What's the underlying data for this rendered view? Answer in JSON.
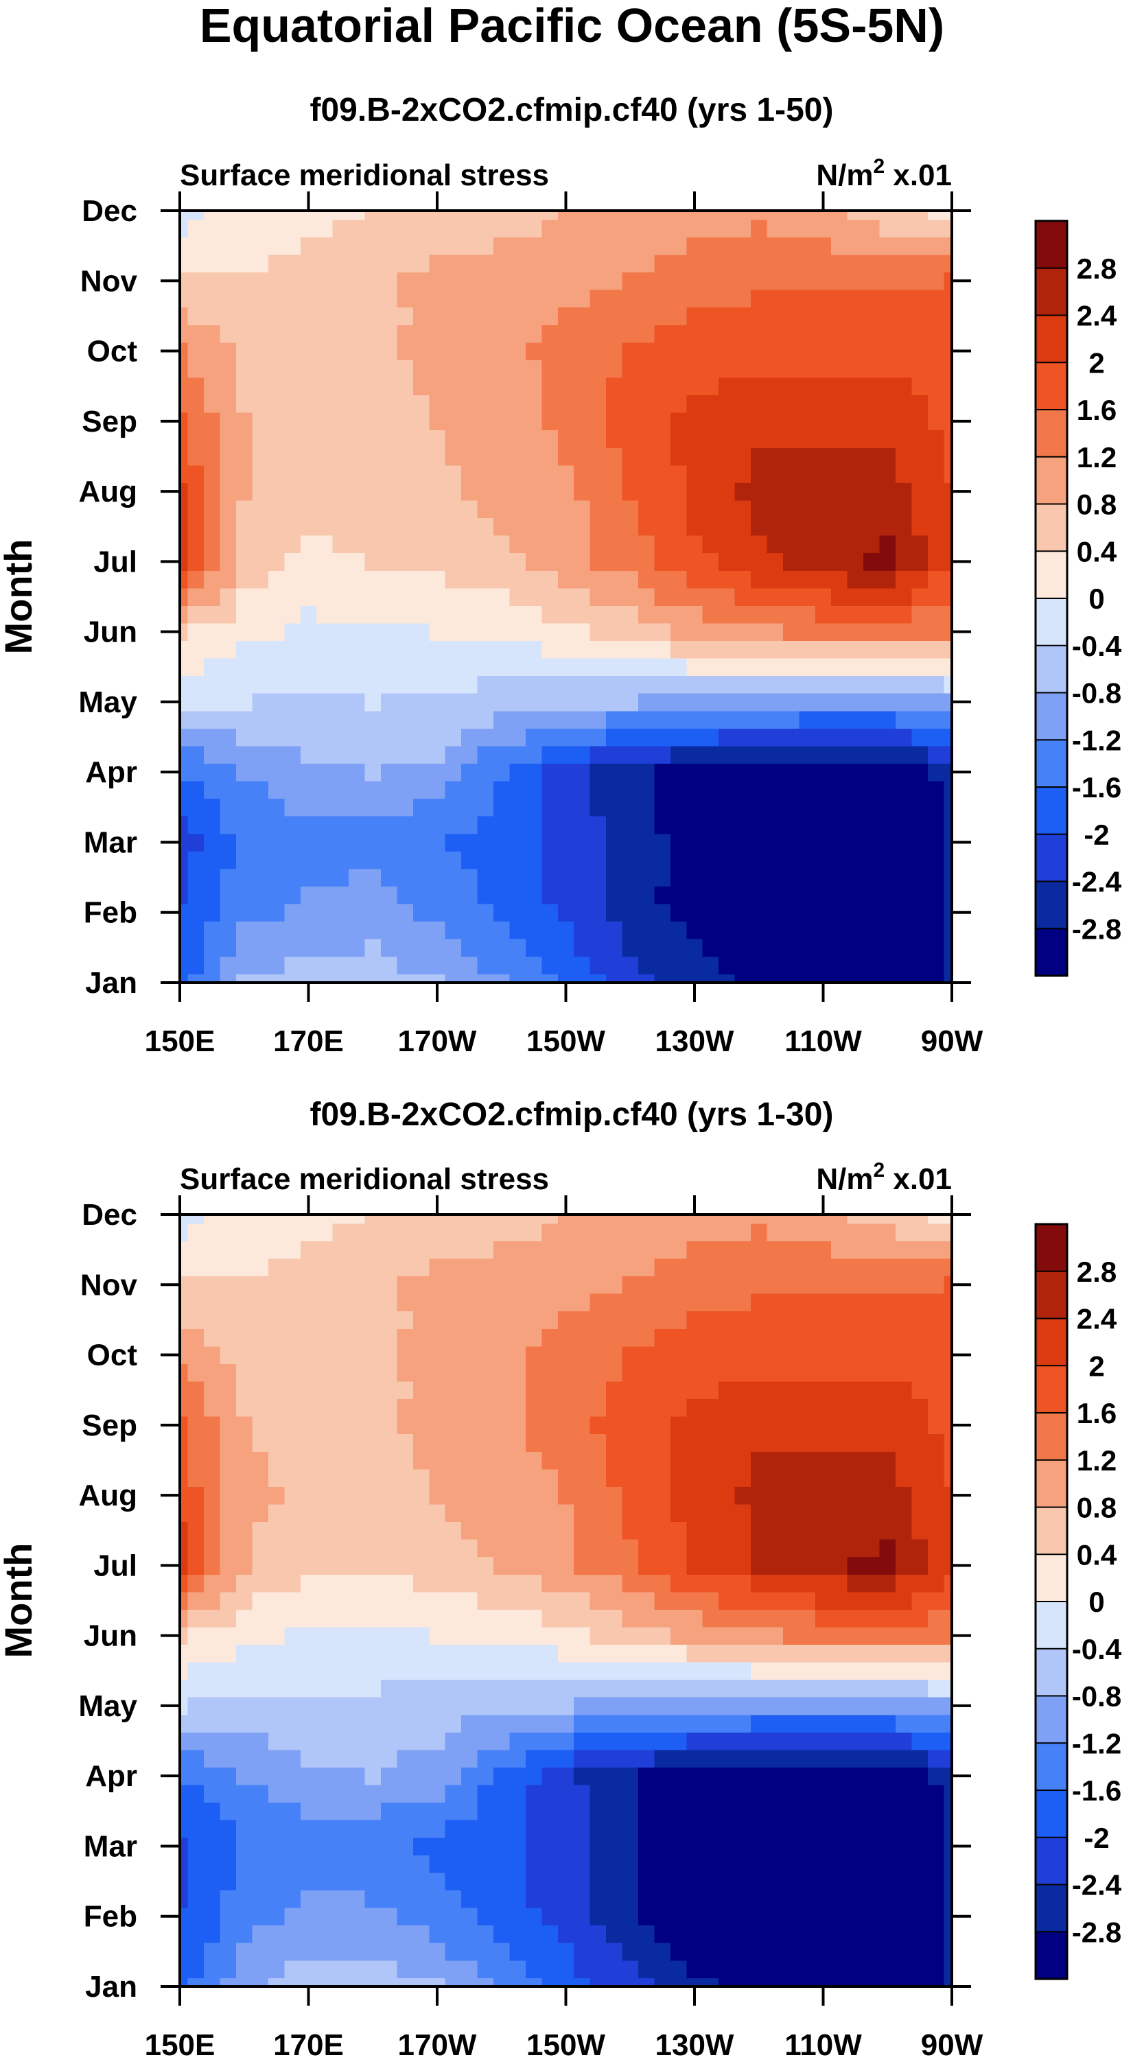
{
  "title": "Equatorial Pacific Ocean (5S-5N)",
  "colorbar": {
    "colors": [
      "#000080",
      "#0a2aa0",
      "#1f3fd8",
      "#1d5ef5",
      "#4681f8",
      "#7ea0f5",
      "#b1c6f8",
      "#d7e5fc",
      "#fde9dc",
      "#f8c7ad",
      "#f6a27f",
      "#f2784a",
      "#ef5424",
      "#dc3a10",
      "#b0240b",
      "#830b0b"
    ],
    "labels": [
      "2.8",
      "2.4",
      "2",
      "1.6",
      "1.2",
      "0.8",
      "0.4",
      "0",
      "-0.4",
      "-0.8",
      "-1.2",
      "-1.6",
      "-2",
      "-2.4",
      "-2.8"
    ],
    "thresholds": [
      -2.8,
      -2.4,
      -2,
      -1.6,
      -1.2,
      -0.8,
      -0.4,
      0,
      0.4,
      0.8,
      1.2,
      1.6,
      2,
      2.4,
      2.8
    ]
  },
  "chart_data": [
    {
      "type": "heatmap",
      "title": "f09.B-2xCO2.cfmip.cf40 (yrs 1-50)",
      "left_label": "Surface meridional stress",
      "units_prefix": "N/m",
      "units_sup": "2",
      "units_suffix": " x.01",
      "ylabel": "Month",
      "xlabel": "",
      "x_ticks": [
        "150E",
        "170E",
        "170W",
        "150W",
        "130W",
        "110W",
        "90W"
      ],
      "y_ticks": [
        "Jan",
        "Feb",
        "Mar",
        "Apr",
        "May",
        "Jun",
        "Jul",
        "Aug",
        "Sep",
        "Oct",
        "Nov",
        "Dec"
      ],
      "xlim": [
        150,
        270
      ],
      "ylim": [
        "Jan",
        "Dec"
      ],
      "longitudes": [
        150,
        160,
        170,
        180,
        190,
        200,
        210,
        220,
        230,
        240,
        250,
        260,
        270
      ],
      "values": [
        [
          -1.8,
          -0.8,
          -0.6,
          -0.6,
          -0.8,
          -1.2,
          -1.7,
          -2.2,
          -2.6,
          -3.0,
          -3.1,
          -3.1,
          -2.8
        ],
        [
          -2.0,
          -1.3,
          -1.1,
          -1.0,
          -1.3,
          -1.7,
          -2.1,
          -2.6,
          -3.0,
          -3.3,
          -3.4,
          -3.4,
          -2.8
        ],
        [
          -2.2,
          -1.5,
          -1.3,
          -1.4,
          -1.6,
          -1.8,
          -2.1,
          -2.6,
          -3.0,
          -3.4,
          -3.5,
          -3.5,
          -2.8
        ],
        [
          -1.6,
          -1.2,
          -0.9,
          -0.8,
          -0.9,
          -1.6,
          -2.2,
          -2.7,
          -3.0,
          -3.2,
          -3.2,
          -3.2,
          -2.6
        ],
        [
          -0.3,
          -0.4,
          -0.5,
          -0.4,
          -0.5,
          -0.6,
          -0.7,
          -0.8,
          -0.9,
          -1.0,
          -1.1,
          -1.1,
          -0.9
        ],
        [
          0.4,
          0.1,
          -0.1,
          -0.1,
          0.0,
          0.1,
          0.3,
          0.6,
          0.9,
          1.1,
          1.3,
          1.4,
          1.2
        ],
        [
          2.2,
          0.7,
          0.3,
          0.4,
          0.5,
          0.7,
          1.0,
          1.4,
          1.9,
          2.3,
          2.6,
          2.9,
          2.0
        ],
        [
          2.0,
          0.8,
          0.6,
          0.6,
          0.7,
          0.9,
          1.1,
          1.6,
          2.1,
          2.5,
          2.6,
          2.6,
          2.0
        ],
        [
          1.6,
          0.8,
          0.6,
          0.6,
          0.8,
          1.0,
          1.3,
          1.8,
          2.1,
          2.3,
          2.3,
          2.2,
          1.9
        ],
        [
          1.2,
          0.7,
          0.6,
          0.7,
          0.9,
          1.1,
          1.3,
          1.6,
          1.8,
          1.9,
          1.9,
          1.9,
          1.8
        ],
        [
          0.4,
          0.4,
          0.5,
          0.7,
          0.9,
          1.0,
          1.1,
          1.2,
          1.4,
          1.5,
          1.5,
          1.5,
          1.6
        ],
        [
          -0.2,
          0.2,
          0.3,
          0.4,
          0.5,
          0.6,
          0.8,
          0.9,
          1.0,
          1.1,
          0.9,
          0.5,
          0.3
        ]
      ]
    },
    {
      "type": "heatmap",
      "title": "f09.B-2xCO2.cfmip.cf40 (yrs 1-30)",
      "left_label": "Surface meridional stress",
      "units_prefix": "N/m",
      "units_sup": "2",
      "units_suffix": " x.01",
      "ylabel": "Month",
      "xlabel": "",
      "x_ticks": [
        "150E",
        "170E",
        "170W",
        "150W",
        "130W",
        "110W",
        "90W"
      ],
      "y_ticks": [
        "Jan",
        "Feb",
        "Mar",
        "Apr",
        "May",
        "Jun",
        "Jul",
        "Aug",
        "Sep",
        "Oct",
        "Nov",
        "Dec"
      ],
      "xlim": [
        150,
        270
      ],
      "ylim": [
        "Jan",
        "Dec"
      ],
      "longitudes": [
        150,
        160,
        170,
        180,
        190,
        200,
        210,
        220,
        230,
        240,
        250,
        260,
        270
      ],
      "values": [
        [
          -1.8,
          -0.9,
          -0.6,
          -0.6,
          -0.8,
          -1.3,
          -1.8,
          -2.3,
          -2.7,
          -3.0,
          -3.1,
          -3.1,
          -2.8
        ],
        [
          -2.0,
          -1.4,
          -1.1,
          -1.1,
          -1.4,
          -1.8,
          -2.2,
          -2.7,
          -3.1,
          -3.3,
          -3.4,
          -3.4,
          -2.8
        ],
        [
          -2.1,
          -1.6,
          -1.4,
          -1.5,
          -1.7,
          -1.9,
          -2.2,
          -2.7,
          -3.1,
          -3.4,
          -3.5,
          -3.5,
          -2.8
        ],
        [
          -1.6,
          -1.2,
          -0.9,
          -0.8,
          -1.0,
          -1.7,
          -2.3,
          -2.8,
          -3.1,
          -3.2,
          -3.2,
          -3.2,
          -2.6
        ],
        [
          -0.4,
          -0.5,
          -0.5,
          -0.5,
          -0.6,
          -0.7,
          -0.8,
          -0.9,
          -1.0,
          -1.1,
          -1.1,
          -1.1,
          -0.9
        ],
        [
          0.4,
          0.1,
          -0.1,
          -0.1,
          0.0,
          0.1,
          0.3,
          0.6,
          0.9,
          1.1,
          1.3,
          1.4,
          1.3
        ],
        [
          2.1,
          0.8,
          0.5,
          0.5,
          0.6,
          0.8,
          1.1,
          1.5,
          2.0,
          2.4,
          2.7,
          2.9,
          2.0
        ],
        [
          1.9,
          0.9,
          0.7,
          0.7,
          0.8,
          1.0,
          1.2,
          1.7,
          2.2,
          2.5,
          2.6,
          2.6,
          2.0
        ],
        [
          1.6,
          0.8,
          0.7,
          0.7,
          0.9,
          1.1,
          1.4,
          1.8,
          2.1,
          2.3,
          2.3,
          2.2,
          1.9
        ],
        [
          1.1,
          0.7,
          0.6,
          0.7,
          0.9,
          1.1,
          1.3,
          1.6,
          1.8,
          1.9,
          1.9,
          1.9,
          1.8
        ],
        [
          0.4,
          0.4,
          0.5,
          0.7,
          0.9,
          1.0,
          1.1,
          1.2,
          1.4,
          1.5,
          1.5,
          1.5,
          1.6
        ],
        [
          -0.2,
          0.2,
          0.3,
          0.4,
          0.5,
          0.6,
          0.8,
          0.9,
          1.0,
          1.1,
          0.9,
          0.6,
          0.3
        ]
      ]
    }
  ]
}
